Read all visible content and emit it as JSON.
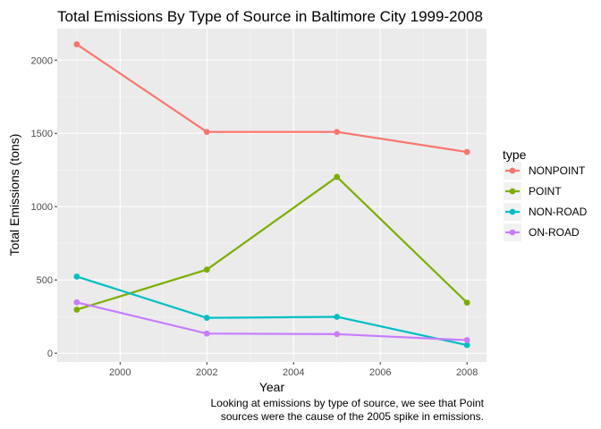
{
  "chart_data": {
    "type": "line",
    "title": "Total Emissions By Type of Source in Baltimore City 1999-2008",
    "xlabel": "Year",
    "ylabel": "Total Emissions  (tons)",
    "x": [
      1999,
      2002,
      2005,
      2008
    ],
    "xlim": [
      1998.55,
      2008.45
    ],
    "ylim": [
      -60,
      2215
    ],
    "xticks": [
      2000,
      2002,
      2004,
      2006,
      2008
    ],
    "xtick_labels": [
      "2000",
      "2002",
      "2004",
      "2006",
      "2008"
    ],
    "yticks": [
      0,
      500,
      1000,
      1500,
      2000
    ],
    "ytick_labels": [
      "0",
      "500",
      "1000",
      "1500",
      "2000"
    ],
    "x_minor": [
      1999,
      2001,
      2003,
      2005,
      2007
    ],
    "y_minor": [
      250,
      750,
      1250,
      1750
    ],
    "grid": true,
    "legend_title": "type",
    "legend_position": "right",
    "series": [
      {
        "name": "NONPOINT",
        "color": "#F8766D",
        "values": [
          2108,
          1510,
          1510,
          1373
        ]
      },
      {
        "name": "POINT",
        "color": "#7CAE00",
        "values": [
          297,
          570,
          1203,
          345
        ]
      },
      {
        "name": "NON-ROAD",
        "color": "#00BFC4",
        "values": [
          523,
          241,
          248,
          55
        ]
      },
      {
        "name": "ON-ROAD",
        "color": "#C77CFF",
        "values": [
          347,
          134,
          130,
          89
        ]
      }
    ]
  },
  "caption": {
    "line1": "Looking at emissions by type of source, we see that Point",
    "line2": "sources were the cause of the 2005 spike in emissions."
  }
}
